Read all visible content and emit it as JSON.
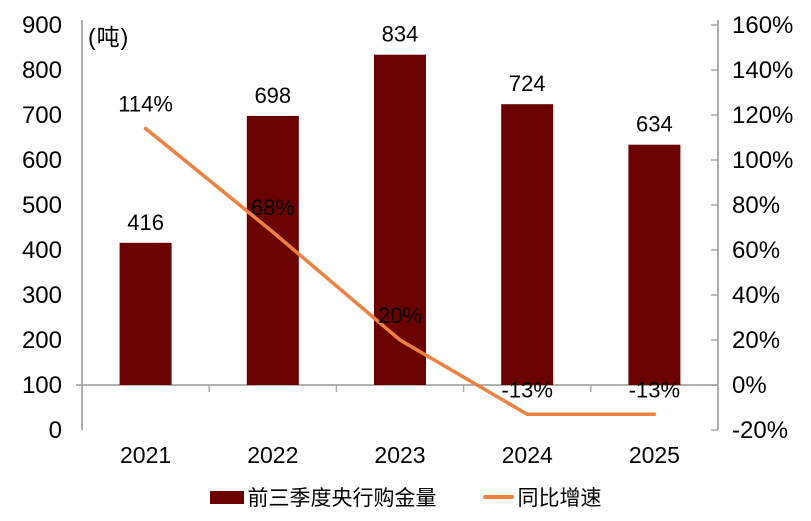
{
  "chart_data": {
    "type": "bar",
    "unit_label": "(吨)",
    "categories": [
      "2021",
      "2022",
      "2023",
      "2024",
      "2025"
    ],
    "series": [
      {
        "name": "前三季度央行购金量",
        "type": "bar",
        "axis": "left",
        "values": [
          416,
          698,
          834,
          724,
          634
        ],
        "data_labels": [
          "416",
          "698",
          "834",
          "724",
          "634"
        ],
        "color": "#6A0202"
      },
      {
        "name": "同比增速",
        "type": "line",
        "axis": "right",
        "values": [
          114,
          68,
          20,
          -13,
          -13
        ],
        "data_labels": [
          "114%",
          "68%",
          "20%",
          "-13%",
          "-13%"
        ],
        "color": "#EF8140"
      }
    ],
    "left_axis": {
      "min": 0,
      "max": 900,
      "step": 100,
      "tick_labels": [
        "900",
        "800",
        "700",
        "600",
        "500",
        "400",
        "300",
        "200",
        "100",
        "0"
      ]
    },
    "right_axis": {
      "min": -20,
      "max": 160,
      "step": 20,
      "tick_labels": [
        "160%",
        "140%",
        "120%",
        "100%",
        "80%",
        "60%",
        "40%",
        "20%",
        "0%",
        "-20%"
      ]
    },
    "baseline_right_value": 0,
    "grid": "off",
    "legend_position": "bottom"
  },
  "legend": {
    "bar_label": "前三季度央行购金量",
    "line_label": "同比增速"
  },
  "colors": {
    "bar": "#6A0202",
    "line": "#EF8140",
    "axis": "#A6A6A6",
    "text": "#000000",
    "background": "#FFFFFF"
  }
}
